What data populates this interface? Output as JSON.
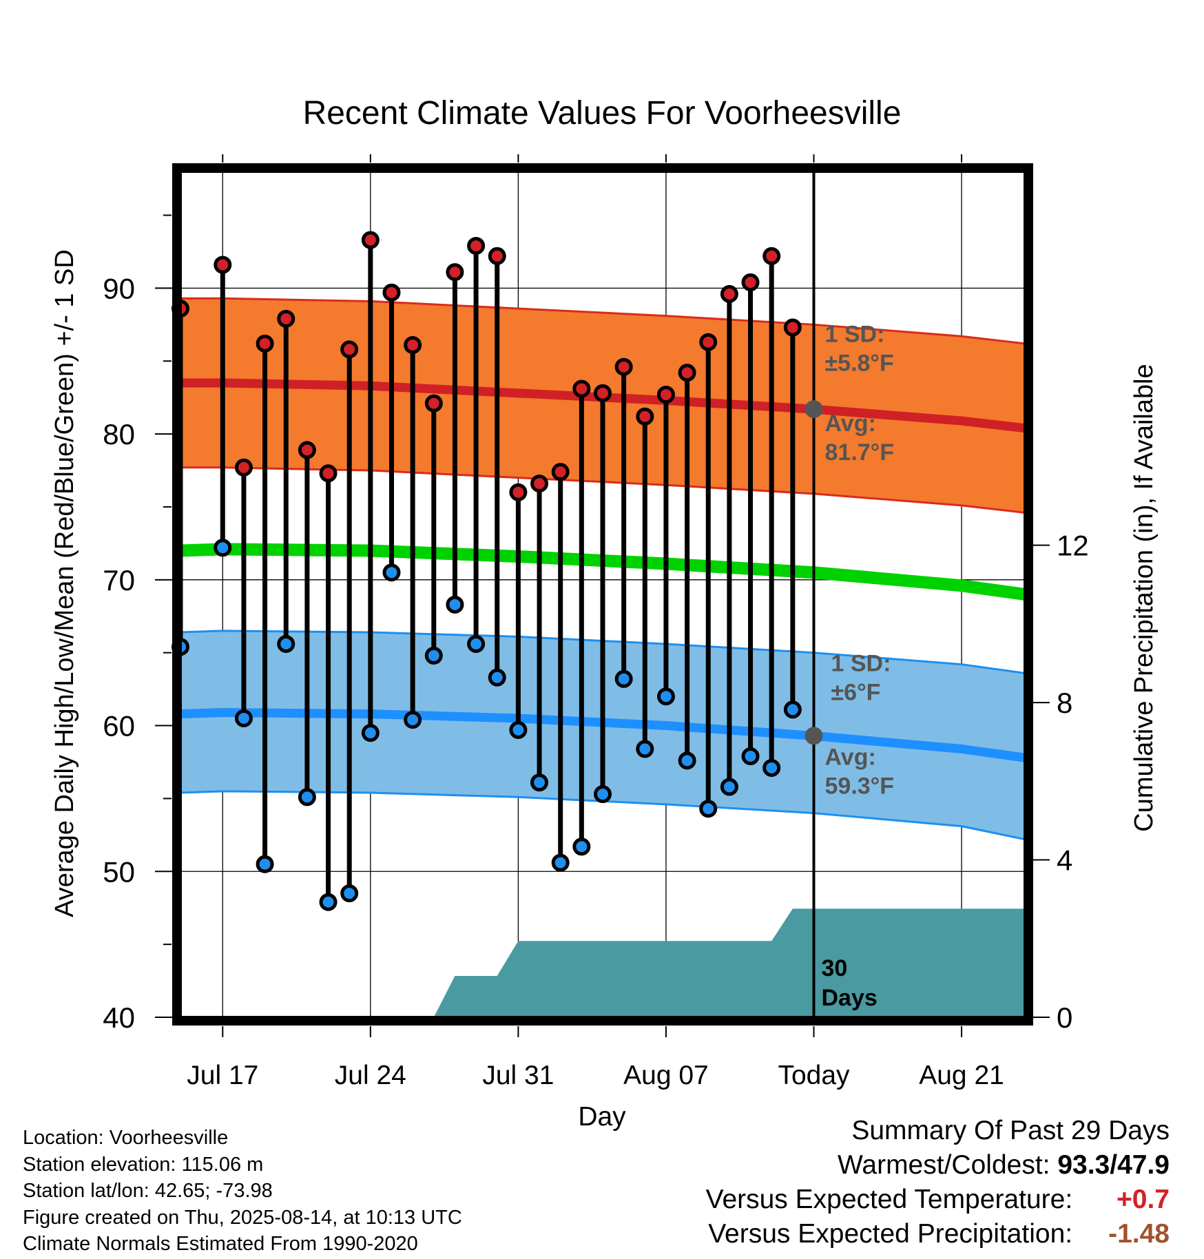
{
  "title": "Recent Climate Values For Voorheesville",
  "colors": {
    "high_fill": "#f47a2e",
    "high_edge": "#d92b1c",
    "high_mean": "#cf2026",
    "low_fill": "#7fbde6",
    "low_edge": "#1e8fef",
    "low_mean": "#1e8fff",
    "mean_line": "#00d200",
    "precip_fill": "#4a9aa2",
    "marker_high": "#d42027",
    "marker_low": "#1f8fef",
    "annot_text": "#555555",
    "today_marker": "#555555",
    "pos_anom": "#d42027",
    "neg_anom": "#a0522d"
  },
  "chart_data": {
    "type": "line",
    "title": "Recent Climate Values For Voorheesville",
    "xlabel": "Day",
    "ylabel": "Average Daily High/Low/Mean (Red/Blue/Green) +/- 1 SD",
    "y2label": "Cumulative Precipitation (in), If Available",
    "ylim": [
      40,
      98
    ],
    "y2lim": [
      0,
      21.5
    ],
    "yticks": [
      "40",
      "50",
      "60",
      "70",
      "80",
      "90"
    ],
    "y2ticks": [
      "0",
      "4",
      "8",
      "12"
    ],
    "x_range": [
      "2025-07-15",
      "2025-08-24"
    ],
    "x_ticks": [
      {
        "date": "2025-07-17",
        "label": "Jul 17"
      },
      {
        "date": "2025-07-24",
        "label": "Jul 24"
      },
      {
        "date": "2025-07-31",
        "label": "Jul 31"
      },
      {
        "date": "2025-08-07",
        "label": "Aug 07"
      },
      {
        "date": "2025-08-14",
        "label": "Today"
      },
      {
        "date": "2025-08-21",
        "label": "Aug 21"
      }
    ],
    "today": "2025-08-14",
    "grid": true,
    "observed": {
      "dates": [
        "2025-07-15",
        "2025-07-17",
        "2025-07-18",
        "2025-07-19",
        "2025-07-20",
        "2025-07-21",
        "2025-07-22",
        "2025-07-23",
        "2025-07-24",
        "2025-07-25",
        "2025-07-26",
        "2025-07-27",
        "2025-07-28",
        "2025-07-29",
        "2025-07-30",
        "2025-07-31",
        "2025-08-01",
        "2025-08-02",
        "2025-08-03",
        "2025-08-04",
        "2025-08-05",
        "2025-08-06",
        "2025-08-07",
        "2025-08-08",
        "2025-08-09",
        "2025-08-10",
        "2025-08-11",
        "2025-08-12",
        "2025-08-13"
      ],
      "high": [
        88.6,
        91.6,
        77.7,
        86.2,
        87.9,
        78.9,
        77.3,
        85.8,
        93.3,
        89.7,
        86.1,
        82.1,
        91.1,
        92.9,
        92.2,
        76.0,
        76.6,
        77.4,
        83.1,
        82.8,
        84.6,
        81.2,
        82.7,
        84.2,
        86.3,
        89.6,
        90.4,
        92.2,
        87.3
      ],
      "low": [
        65.4,
        72.2,
        60.5,
        50.5,
        65.6,
        55.1,
        47.9,
        48.5,
        59.5,
        70.5,
        60.4,
        64.8,
        68.3,
        65.6,
        63.3,
        59.7,
        56.1,
        50.6,
        51.7,
        55.3,
        63.2,
        58.4,
        62.0,
        57.6,
        54.3,
        55.8,
        57.9,
        57.1,
        61.1
      ]
    },
    "normals": {
      "dates": [
        "2025-07-15",
        "2025-07-17",
        "2025-07-24",
        "2025-07-31",
        "2025-08-07",
        "2025-08-14",
        "2025-08-21",
        "2025-08-24"
      ],
      "high_mean": [
        83.5,
        83.5,
        83.3,
        82.8,
        82.3,
        81.7,
        80.9,
        80.4
      ],
      "high_upper": [
        89.3,
        89.3,
        89.1,
        88.6,
        88.1,
        87.5,
        86.7,
        86.2
      ],
      "high_lower": [
        77.7,
        77.7,
        77.5,
        77.0,
        76.5,
        75.9,
        75.1,
        74.6
      ],
      "mean": [
        72.0,
        72.1,
        72.0,
        71.6,
        71.1,
        70.5,
        69.6,
        69.0
      ],
      "low_mean": [
        60.8,
        60.9,
        60.8,
        60.5,
        60.0,
        59.3,
        58.4,
        57.8
      ],
      "low_upper": [
        66.4,
        66.5,
        66.4,
        66.1,
        65.6,
        65.0,
        64.2,
        63.6
      ],
      "low_lower": [
        55.4,
        55.5,
        55.4,
        55.1,
        54.6,
        54.0,
        53.1,
        52.2
      ]
    },
    "precip_cumulative": {
      "dates": [
        "2025-07-15",
        "2025-07-27",
        "2025-07-28",
        "2025-07-30",
        "2025-07-31",
        "2025-08-12",
        "2025-08-13",
        "2025-08-24"
      ],
      "values": [
        0,
        0,
        1.05,
        1.05,
        1.94,
        1.94,
        2.76,
        2.76
      ]
    },
    "annotations": {
      "high_sd": [
        "1 SD:",
        "±5.8°F"
      ],
      "high_avg": [
        "Avg:",
        "81.7°F"
      ],
      "low_sd": [
        "1 SD:",
        "±6°F"
      ],
      "low_avg": [
        "Avg:",
        "59.3°F"
      ],
      "days": [
        "30",
        "Days"
      ]
    }
  },
  "footer": {
    "location": "Location: Voorheesville",
    "elevation": "Station elevation: 115.06 m",
    "latlon": "Station lat/lon: 42.65; -73.98",
    "created": "Figure created on Thu, 2025-08-14, at 10:13 UTC",
    "normals": "Climate Normals Estimated From 1990-2020"
  },
  "summary": {
    "heading": "Summary Of Past 29 Days",
    "warmest_label": "Warmest/Coldest:",
    "warmest_value": "93.3/47.9",
    "temp_label": "Versus Expected Temperature:",
    "temp_value": "+0.7",
    "precip_label": "Versus Expected Precipitation:",
    "precip_value": "-1.48"
  }
}
